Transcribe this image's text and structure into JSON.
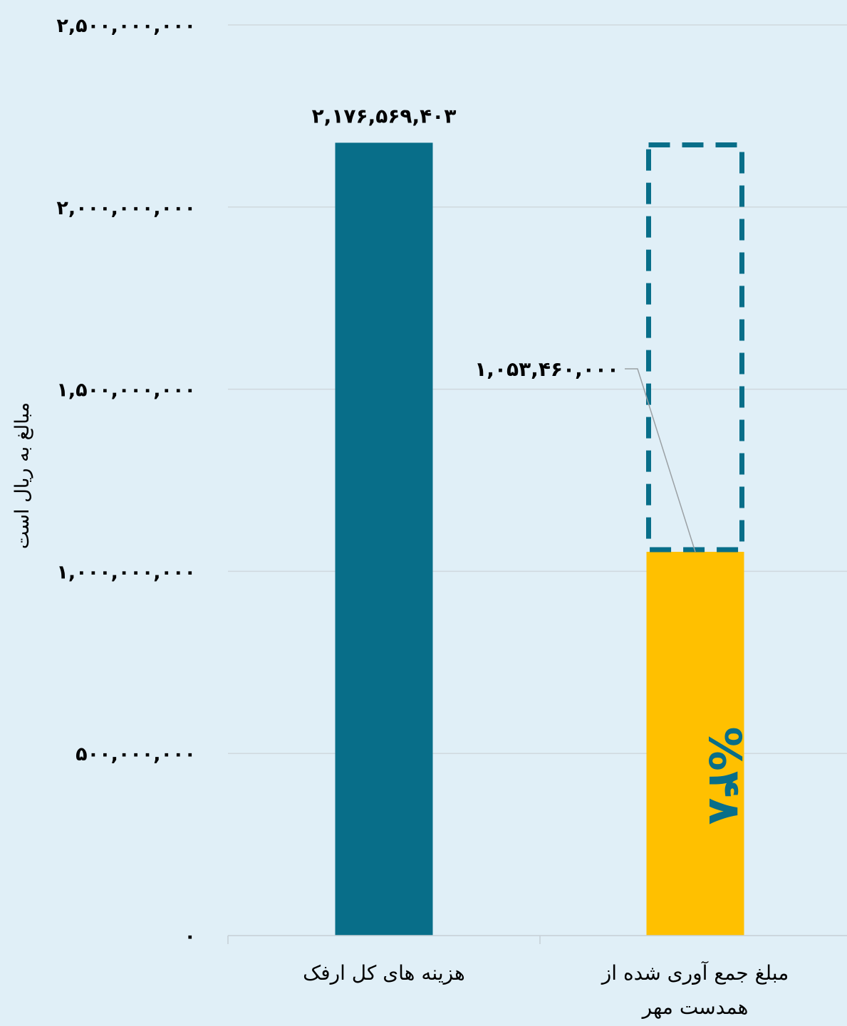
{
  "chart_data": {
    "type": "bar",
    "ylabel": "مبالغ به ریال است",
    "ylim": [
      0,
      2500000000
    ],
    "ytick_values": [
      0,
      500000000,
      1000000000,
      1500000000,
      2000000000,
      2500000000
    ],
    "ytick_labels": [
      "۰",
      "۵۰۰,۰۰۰,۰۰۰",
      "۱,۰۰۰,۰۰۰,۰۰۰",
      "۱,۵۰۰,۰۰۰,۰۰۰",
      "۲,۰۰۰,۰۰۰,۰۰۰",
      "۲,۵۰۰,۰۰۰,۰۰۰"
    ],
    "grid": true,
    "bars": [
      {
        "category_lines": [
          "هزینه های کل ارفک"
        ],
        "value": 2176569403,
        "value_label": "۲,۱۷۶,۵۶۹,۴۰۳",
        "color": "#086e89"
      },
      {
        "category_lines": [
          "مبلغ جمع آوری شده از",
          "همدست مهر"
        ],
        "value": 1053460000,
        "value_label": "۱,۰۵۳,۴۶۰,۰۰۰",
        "color": "#ffc000",
        "target_value": 2176569403,
        "target_color": "#086e89",
        "share_label": "%۴۸"
      }
    ]
  }
}
